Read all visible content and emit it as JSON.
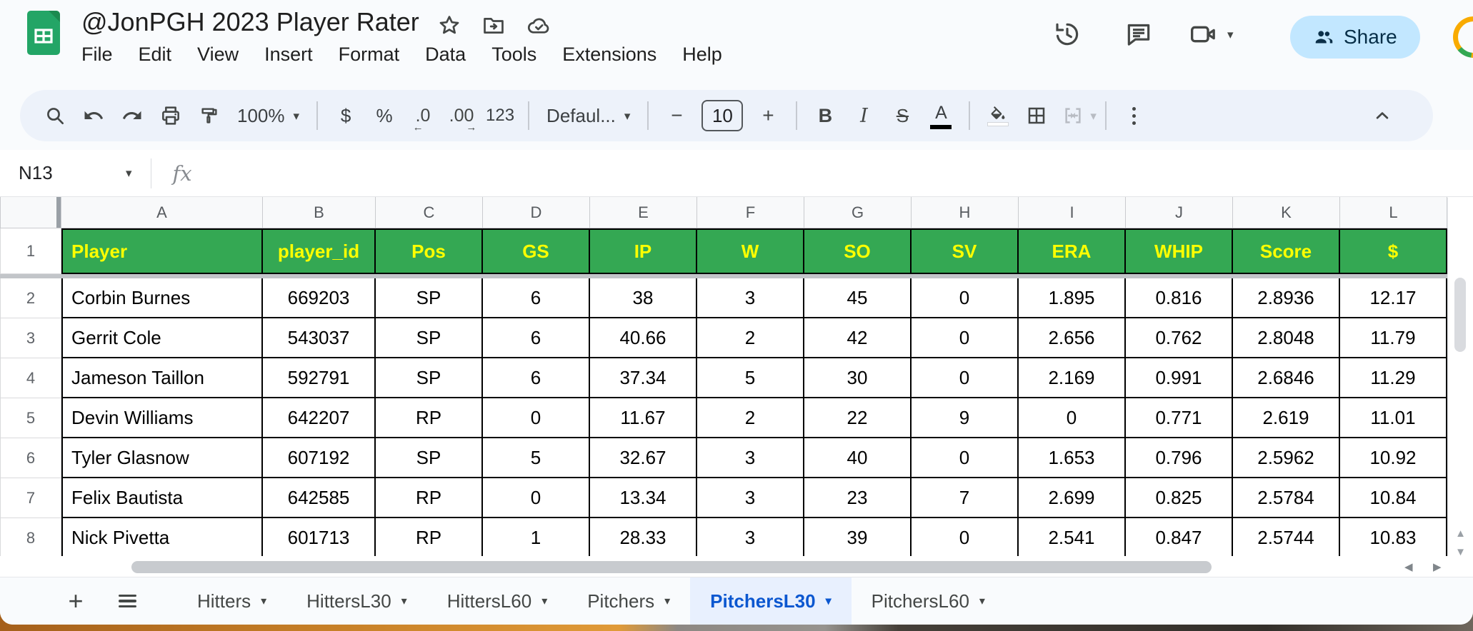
{
  "titlebar": {
    "title": "@JonPGH 2023 Player Rater",
    "menus": [
      "File",
      "Edit",
      "View",
      "Insert",
      "Format",
      "Data",
      "Tools",
      "Extensions",
      "Help"
    ],
    "share_label": "Share"
  },
  "toolbar": {
    "zoom_value": "100%",
    "currency_label": "$",
    "percent_label": "%",
    "decimal_decrease_label": ".0",
    "decimal_increase_label": ".00",
    "more_formats_label": "123",
    "font_family_value": "Defaul...",
    "font_size_value": "10",
    "bold_label": "B",
    "italic_label": "I",
    "strikethrough_label": "S",
    "text_color_label": "A"
  },
  "formula_bar": {
    "cell_reference": "N13",
    "fx_label": "fx"
  },
  "grid": {
    "column_letters": [
      "A",
      "B",
      "C",
      "D",
      "E",
      "F",
      "G",
      "H",
      "I",
      "J",
      "K",
      "L"
    ],
    "header_row_number": "1",
    "header_row": [
      "Player",
      "player_id",
      "Pos",
      "GS",
      "IP",
      "W",
      "SO",
      "SV",
      "ERA",
      "WHIP",
      "Score",
      "$"
    ],
    "rows": [
      {
        "n": "2",
        "cells": [
          "Corbin Burnes",
          "669203",
          "SP",
          "6",
          "38",
          "3",
          "45",
          "0",
          "1.895",
          "0.816",
          "2.8936",
          "12.17"
        ]
      },
      {
        "n": "3",
        "cells": [
          "Gerrit Cole",
          "543037",
          "SP",
          "6",
          "40.66",
          "2",
          "42",
          "0",
          "2.656",
          "0.762",
          "2.8048",
          "11.79"
        ]
      },
      {
        "n": "4",
        "cells": [
          "Jameson Taillon",
          "592791",
          "SP",
          "6",
          "37.34",
          "5",
          "30",
          "0",
          "2.169",
          "0.991",
          "2.6846",
          "11.29"
        ]
      },
      {
        "n": "5",
        "cells": [
          "Devin Williams",
          "642207",
          "RP",
          "0",
          "11.67",
          "2",
          "22",
          "9",
          "0",
          "0.771",
          "2.619",
          "11.01"
        ]
      },
      {
        "n": "6",
        "cells": [
          "Tyler Glasnow",
          "607192",
          "SP",
          "5",
          "32.67",
          "3",
          "40",
          "0",
          "1.653",
          "0.796",
          "2.5962",
          "10.92"
        ]
      },
      {
        "n": "7",
        "cells": [
          "Felix Bautista",
          "642585",
          "RP",
          "0",
          "13.34",
          "3",
          "23",
          "7",
          "2.699",
          "0.825",
          "2.5784",
          "10.84"
        ]
      },
      {
        "n": "8",
        "cells": [
          "Nick Pivetta",
          "601713",
          "RP",
          "1",
          "28.33",
          "3",
          "39",
          "0",
          "2.541",
          "0.847",
          "2.5744",
          "10.83"
        ]
      }
    ]
  },
  "sheet_tabs": {
    "tabs": [
      {
        "label": "Hitters",
        "active": false
      },
      {
        "label": "HittersL30",
        "active": false
      },
      {
        "label": "HittersL60",
        "active": false
      },
      {
        "label": "Pitchers",
        "active": false
      },
      {
        "label": "PitchersL30",
        "active": true
      },
      {
        "label": "PitchersL60",
        "active": false
      }
    ]
  },
  "icons": {
    "caret_down": "▾",
    "scroll_up": "▲",
    "scroll_down": "▼",
    "scroll_left": "◀",
    "scroll_right": "▶",
    "plus": "+"
  },
  "colors": {
    "header_fill": "#34a853",
    "header_text": "#ffff00",
    "active_tab_text": "#0b57d0",
    "active_tab_bg": "#e8f0fe",
    "share_button_bg": "#c2e7ff",
    "frozen_divider": "#c2c5c9"
  }
}
